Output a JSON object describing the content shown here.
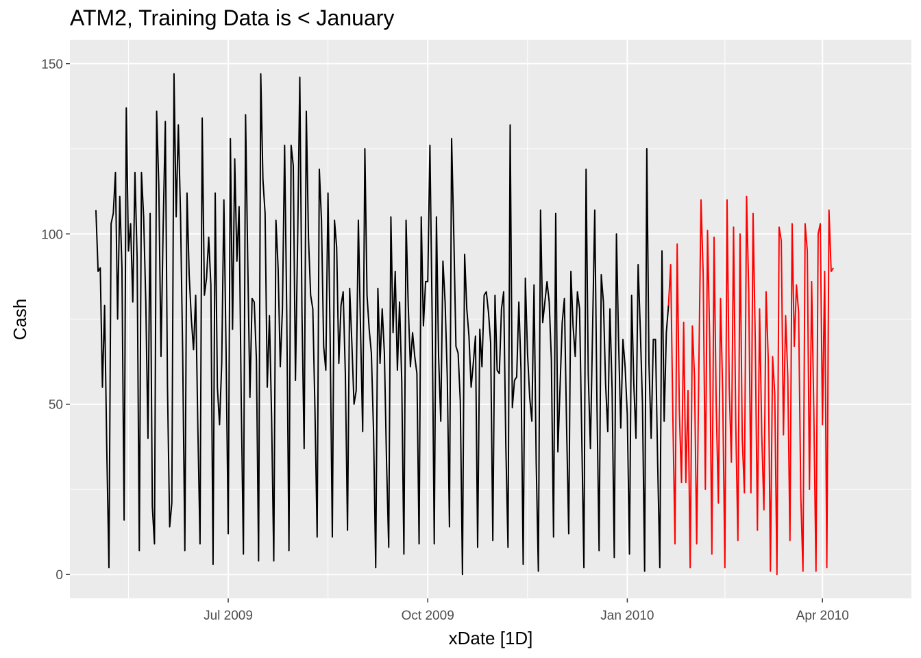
{
  "chart_data": {
    "type": "line",
    "title": "ATM2, Training Data is < January",
    "xlabel": "xDate [1D]",
    "ylabel": "Cash",
    "x_start": "2009-05-01",
    "x_end": "2010-04-30",
    "xlim": [
      "2009-04-19",
      "2010-05-12"
    ],
    "ylim": [
      -7,
      157
    ],
    "y_ticks": [
      0,
      50,
      100,
      150
    ],
    "x_ticks": [
      {
        "date": "2009-07-01",
        "label": "Jul 2009"
      },
      {
        "date": "2009-10-01",
        "label": "Oct 2009"
      },
      {
        "date": "2010-01-01",
        "label": "Jan 2010"
      },
      {
        "date": "2010-04-01",
        "label": "Apr 2010"
      }
    ],
    "grid": true,
    "background": "#ebebeb",
    "series": [
      {
        "color": "#000000",
        "values": [
          107,
          89,
          90,
          55,
          79,
          37,
          2,
          103,
          106,
          118,
          75,
          111,
          90,
          16,
          137,
          95,
          103,
          80,
          118,
          93,
          7,
          118,
          105,
          80,
          40,
          106,
          20,
          9,
          136,
          114,
          64,
          102,
          133,
          55,
          14,
          21,
          147,
          105,
          132,
          106,
          65,
          7,
          112,
          88,
          75,
          66,
          82,
          43,
          9,
          134,
          82,
          87,
          99,
          85,
          3,
          112,
          55,
          44,
          62,
          110,
          66,
          12,
          128,
          72,
          122,
          92,
          108,
          51,
          6,
          135,
          92,
          52,
          81,
          80,
          63,
          4,
          147,
          116,
          106,
          55,
          76,
          46,
          4,
          104,
          90,
          61,
          78,
          126,
          76,
          7,
          126,
          120,
          57,
          98,
          146,
          77,
          37,
          136,
          99,
          82,
          78,
          48,
          11,
          119,
          104,
          67,
          60,
          112,
          69,
          11,
          104,
          96,
          62,
          79,
          83,
          59,
          13,
          84,
          68,
          50,
          54,
          104,
          72,
          42,
          125,
          82,
          72,
          65,
          42,
          2,
          84,
          62,
          78,
          65,
          33,
          8,
          105,
          71,
          89,
          60,
          80,
          57,
          6,
          104,
          79,
          61,
          71,
          64,
          59,
          9,
          105,
          73,
          86,
          86,
          126,
          77,
          9,
          105,
          64,
          45,
          92,
          80,
          58,
          14,
          128,
          100,
          67,
          65,
          51,
          0,
          94,
          78,
          70,
          55,
          62,
          70,
          8,
          72,
          61,
          82,
          83,
          77,
          68,
          10,
          82,
          60,
          59,
          78,
          83,
          38,
          8,
          132,
          49,
          57,
          58,
          80,
          60,
          3,
          87,
          65,
          52,
          45,
          85,
          33,
          1,
          107,
          74,
          80,
          86,
          80,
          63,
          11,
          106,
          36,
          55,
          74,
          81,
          44,
          12,
          89,
          73,
          64,
          83,
          78,
          41,
          2,
          119,
          59,
          37,
          72,
          107,
          51,
          7,
          88,
          80,
          56,
          42,
          78,
          54,
          5,
          100,
          68,
          43,
          69,
          61,
          47,
          6,
          82,
          56,
          40,
          91,
          72,
          50,
          1,
          125,
          62,
          40,
          69,
          69,
          33,
          2,
          95,
          45,
          71,
          79
        ]
      },
      {
        "color": "#ff0000",
        "values": [
          91,
          47,
          9,
          97,
          48,
          27,
          74,
          27,
          54,
          2,
          73,
          58,
          9,
          61,
          110,
          88,
          25,
          101,
          69,
          6,
          99,
          50,
          21,
          81,
          53,
          2,
          110,
          55,
          33,
          102,
          45,
          10,
          100,
          40,
          24,
          111,
          83,
          24,
          106,
          69,
          13,
          78,
          41,
          19,
          83,
          63,
          1,
          64,
          53,
          0,
          102,
          98,
          41,
          76,
          58,
          10,
          103,
          67,
          85,
          77,
          23,
          1,
          103,
          95,
          25,
          86,
          48,
          1,
          100,
          103,
          44,
          89,
          2,
          107,
          89,
          90
        ]
      }
    ]
  }
}
